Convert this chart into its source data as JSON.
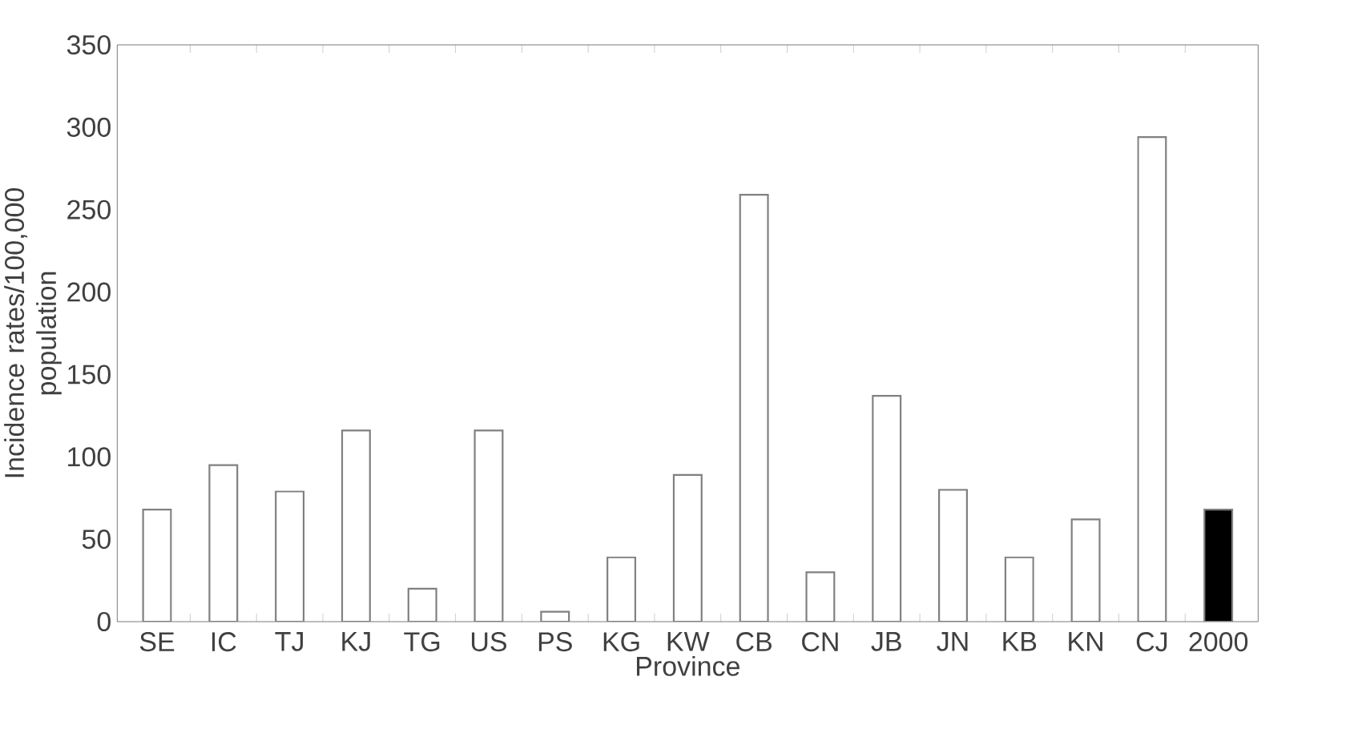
{
  "chart_data": {
    "type": "bar",
    "xlabel": "Province",
    "ylabel": "Incidence rates/100,000 population",
    "categories": [
      "SE",
      "IC",
      "TJ",
      "KJ",
      "TG",
      "US",
      "PS",
      "KG",
      "KW",
      "CB",
      "CN",
      "JB",
      "JN",
      "KB",
      "KN",
      "CJ",
      "2000"
    ],
    "values": [
      68,
      95,
      79,
      116,
      20,
      116,
      6,
      39,
      89,
      259,
      30,
      137,
      80,
      39,
      62,
      294,
      68
    ],
    "colors": [
      "#ffffff",
      "#ffffff",
      "#ffffff",
      "#ffffff",
      "#ffffff",
      "#ffffff",
      "#ffffff",
      "#ffffff",
      "#ffffff",
      "#ffffff",
      "#ffffff",
      "#ffffff",
      "#ffffff",
      "#ffffff",
      "#ffffff",
      "#ffffff",
      "#000000"
    ],
    "ylim": [
      0,
      350
    ],
    "yticks": [
      0,
      50,
      100,
      150,
      200,
      250,
      300,
      350
    ]
  }
}
